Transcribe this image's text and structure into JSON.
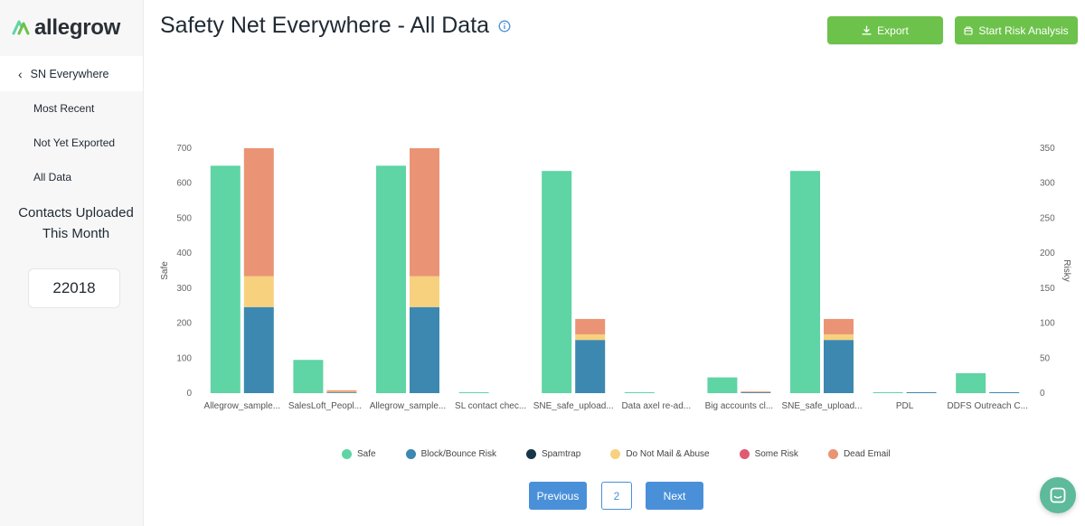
{
  "app": {
    "name": "allegrow"
  },
  "sidebar": {
    "back_label": "SN Everywhere",
    "items": [
      {
        "label": "Most Recent"
      },
      {
        "label": "Not Yet Exported"
      },
      {
        "label": "All Data"
      }
    ],
    "contacts_title": "Contacts Uploaded This Month",
    "contacts_count": "22018"
  },
  "header": {
    "title": "Safety Net Everywhere - All Data",
    "export_label": "Export",
    "risk_label": "Start Risk Analysis"
  },
  "pagination": {
    "previous_label": "Previous",
    "page": "2",
    "next_label": "Next"
  },
  "colors": {
    "brand_green": "#6cc24a",
    "safe": "#5fd4a4",
    "block_bounce": "#3c88b0",
    "spamtrap": "#17364a",
    "do_not_mail": "#f7d17e",
    "some_risk": "#e05a73",
    "dead_email": "#ea9475",
    "pager_blue": "#4a90d9"
  },
  "chart_data": {
    "type": "bar",
    "categories": [
      "Allegrow_sample...",
      "SalesLoft_Peopl...",
      "Allegrow_sample...",
      "SL contact chec...",
      "SNE_safe_upload...",
      "Data axel re-ad...",
      "Big accounts cl...",
      "SNE_safe_upload...",
      "PDL",
      "DDFS Outreach C..."
    ],
    "ylabel": "Safe",
    "y2label": "Risky",
    "ylim": [
      0,
      700
    ],
    "y2lim": [
      0,
      350
    ],
    "yticks": [
      "0",
      "100",
      "200",
      "300",
      "400",
      "500",
      "600",
      "700"
    ],
    "y2ticks": [
      "0",
      "50",
      "100",
      "150",
      "200",
      "250",
      "300",
      "350"
    ],
    "safe_series": {
      "name": "Safe",
      "axis": "left",
      "values": [
        650,
        95,
        650,
        1,
        635,
        1,
        45,
        635,
        1,
        57
      ]
    },
    "risky_series": [
      {
        "name": "Block/Bounce Risk",
        "axis": "right",
        "key": "block_bounce",
        "values": [
          123,
          1,
          123,
          0,
          76,
          0,
          1,
          76,
          1,
          1
        ]
      },
      {
        "name": "Spamtrap",
        "axis": "right",
        "key": "spamtrap",
        "values": [
          0,
          0,
          0,
          0,
          0,
          0,
          0,
          0,
          0,
          0
        ]
      },
      {
        "name": "Do Not Mail & Abuse",
        "axis": "right",
        "key": "do_not_mail",
        "values": [
          44,
          1,
          44,
          0,
          8,
          0,
          0,
          8,
          0,
          0
        ]
      },
      {
        "name": "Some Risk",
        "axis": "right",
        "key": "some_risk",
        "values": [
          0,
          0,
          0,
          0,
          0,
          0,
          0,
          0,
          0,
          0
        ]
      },
      {
        "name": "Dead Email",
        "axis": "right",
        "key": "dead_email",
        "values": [
          183,
          2,
          183,
          0,
          22,
          0,
          1,
          22,
          0,
          0
        ]
      }
    ],
    "legend": [
      {
        "label": "Safe",
        "key": "safe"
      },
      {
        "label": "Block/Bounce Risk",
        "key": "block_bounce"
      },
      {
        "label": "Spamtrap",
        "key": "spamtrap"
      },
      {
        "label": "Do Not Mail & Abuse",
        "key": "do_not_mail"
      },
      {
        "label": "Some Risk",
        "key": "some_risk"
      },
      {
        "label": "Dead Email",
        "key": "dead_email"
      }
    ]
  }
}
